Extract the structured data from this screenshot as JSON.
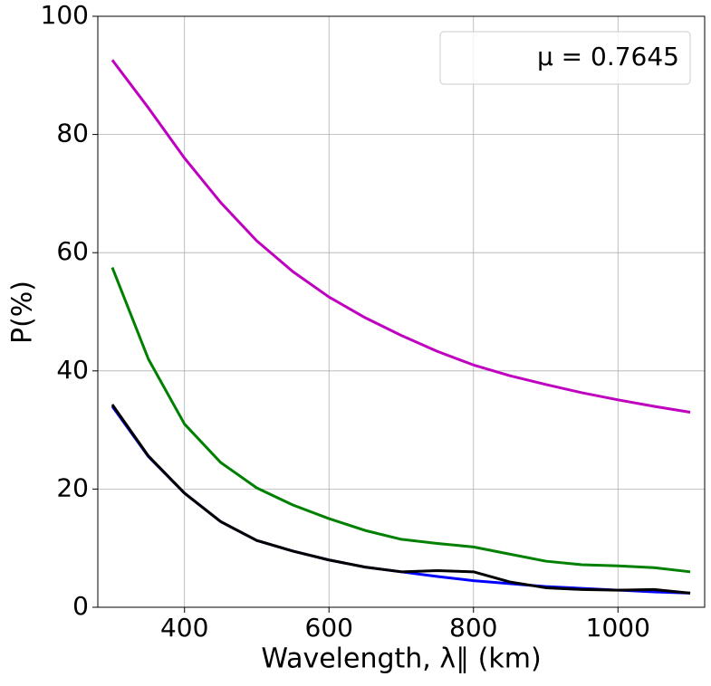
{
  "chart_data": {
    "type": "line",
    "xlabel": "Wavelength, λ∥ (km)",
    "ylabel": "P(%)",
    "legend_text": "μ = 0.7645",
    "legend_loc": "upper right",
    "grid": true,
    "xlim": [
      280,
      1120
    ],
    "ylim": [
      0,
      100
    ],
    "xticks": [
      400,
      600,
      800,
      1000
    ],
    "yticks": [
      0,
      20,
      40,
      60,
      80,
      100
    ],
    "x": [
      300,
      350,
      400,
      450,
      500,
      550,
      600,
      650,
      700,
      750,
      800,
      850,
      900,
      950,
      1000,
      1050,
      1100
    ],
    "series": [
      {
        "color": "#bf00bf",
        "values": [
          92.6,
          84.5,
          76,
          68.5,
          62,
          56.8,
          52.5,
          49,
          46,
          43.3,
          41,
          39.2,
          37.7,
          36.3,
          35.1,
          34,
          33
        ]
      },
      {
        "color": "#008000",
        "values": [
          57.5,
          42,
          31,
          24.5,
          20.2,
          17.3,
          15,
          13,
          11.5,
          10.8,
          10.2,
          9,
          7.8,
          7.2,
          7,
          6.7,
          6
        ]
      },
      {
        "color": "#0000ff",
        "values": [
          34,
          25.5,
          19.3,
          14.5,
          11.3,
          9.5,
          8,
          6.8,
          6,
          5.2,
          4.5,
          4,
          3.5,
          3.2,
          2.9,
          2.6,
          2.4
        ]
      },
      {
        "color": "#000000",
        "values": [
          34.3,
          25.6,
          19.3,
          14.5,
          11.3,
          9.5,
          8,
          6.8,
          6,
          6.2,
          6,
          4.3,
          3.3,
          3,
          2.9,
          3,
          2.4
        ]
      }
    ]
  }
}
